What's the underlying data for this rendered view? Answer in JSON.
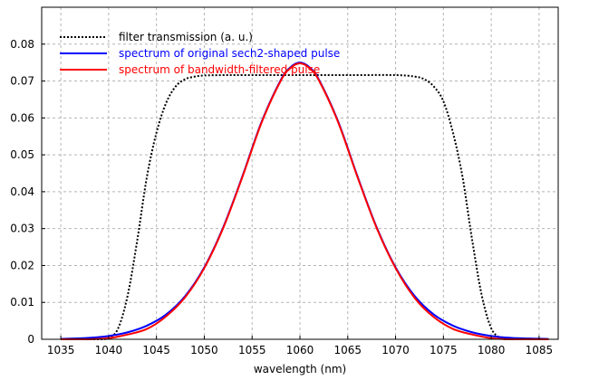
{
  "chart_data": {
    "type": "line",
    "title": "",
    "xlabel": "wavelength (nm)",
    "ylabel": "",
    "xlim": [
      1033,
      1087
    ],
    "ylim": [
      0,
      0.09
    ],
    "grid": true,
    "legend_position": "top-left",
    "x_ticks": [
      1035,
      1040,
      1045,
      1050,
      1055,
      1060,
      1065,
      1070,
      1075,
      1080,
      1085
    ],
    "y_ticks": [
      0,
      0.01,
      0.02,
      0.03,
      0.04,
      0.05,
      0.06,
      0.07,
      0.08
    ],
    "x_tick_labels": [
      "1035",
      "1040",
      "1045",
      "1050",
      "1055",
      "1060",
      "1065",
      "1070",
      "1075",
      "1080",
      "1085"
    ],
    "y_tick_labels": [
      "0",
      "0.01",
      "0.02",
      "0.03",
      "0.04",
      "0.05",
      "0.06",
      "0.07",
      "0.08"
    ],
    "series": [
      {
        "name": "filter transmission (a. u.)",
        "color": "#000000",
        "style": "dotted",
        "x": [
          1035,
          1039,
          1040,
          1041,
          1042,
          1043,
          1044,
          1045,
          1046,
          1047,
          1048,
          1049,
          1050,
          1052,
          1055,
          1060,
          1065,
          1070,
          1072,
          1073,
          1074,
          1075,
          1076,
          1077,
          1078,
          1079,
          1080,
          1081,
          1082,
          1086
        ],
        "values": [
          0,
          0,
          0.0003,
          0.003,
          0.012,
          0.027,
          0.044,
          0.056,
          0.064,
          0.0685,
          0.0705,
          0.0712,
          0.0715,
          0.0716,
          0.0716,
          0.0716,
          0.0716,
          0.0716,
          0.0712,
          0.0705,
          0.0685,
          0.0645,
          0.056,
          0.044,
          0.027,
          0.012,
          0.003,
          0.0003,
          0,
          0
        ]
      },
      {
        "name": "spectrum of original sech2-shaped pulse",
        "color": "#0000ff",
        "style": "solid",
        "x": [
          1035,
          1038,
          1040,
          1042,
          1044,
          1046,
          1048,
          1050,
          1052,
          1054,
          1056,
          1058,
          1059,
          1060,
          1061,
          1062,
          1064,
          1066,
          1068,
          1070,
          1072,
          1074,
          1076,
          1078,
          1080,
          1082,
          1084,
          1086
        ],
        "values": [
          0.0001,
          0.0004,
          0.0009,
          0.0019,
          0.0037,
          0.0067,
          0.0117,
          0.0195,
          0.0305,
          0.0443,
          0.059,
          0.0703,
          0.0737,
          0.075,
          0.0737,
          0.0703,
          0.059,
          0.0443,
          0.0305,
          0.0195,
          0.0117,
          0.0067,
          0.0037,
          0.0019,
          0.0009,
          0.0004,
          0.0002,
          0.0001
        ]
      },
      {
        "name": "spectrum of bandwidth-filtered pulse",
        "color": "#ff0000",
        "style": "solid",
        "x": [
          1035,
          1038,
          1040,
          1042,
          1044,
          1046,
          1048,
          1050,
          1052,
          1054,
          1056,
          1058,
          1059,
          1060,
          1061,
          1062,
          1064,
          1066,
          1068,
          1070,
          1072,
          1074,
          1076,
          1078,
          1080,
          1082,
          1084,
          1086
        ],
        "values": [
          0,
          0,
          0.0003,
          0.0013,
          0.0028,
          0.0062,
          0.0114,
          0.0193,
          0.0303,
          0.0441,
          0.0588,
          0.0701,
          0.0735,
          0.0748,
          0.0735,
          0.0701,
          0.0588,
          0.0441,
          0.0303,
          0.0193,
          0.0112,
          0.006,
          0.0028,
          0.0013,
          0.0003,
          0,
          0,
          0
        ]
      }
    ]
  }
}
